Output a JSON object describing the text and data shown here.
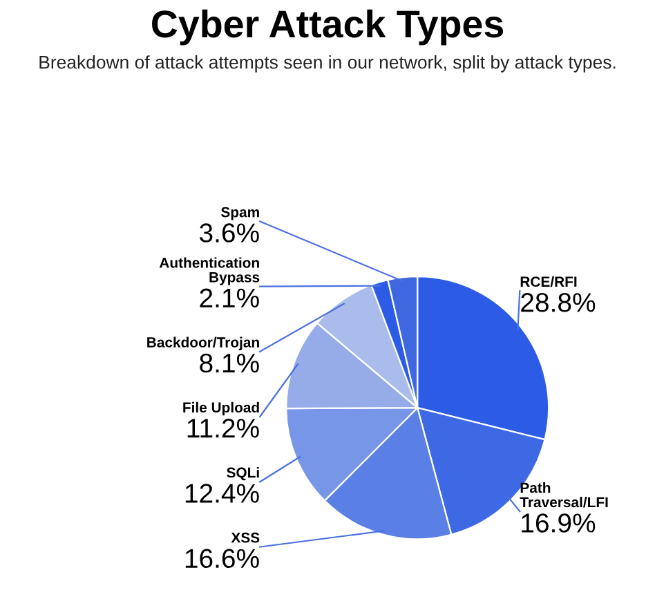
{
  "chart_data": {
    "type": "pie",
    "title": "Cyber Attack Types",
    "subtitle": "Breakdown of attack attempts seen in our network, split by attack types.",
    "categories": [
      "RCE/RFI",
      "Path\nTraversal/LFI",
      "XSS",
      "SQLi",
      "File Upload",
      "Backdoor/Trojan",
      "Authentication\nBypass",
      "Spam"
    ],
    "values": [
      28.8,
      16.9,
      16.6,
      12.4,
      11.2,
      8.1,
      2.1,
      3.6
    ],
    "colors": [
      "#2c5ce6",
      "#3e69e4",
      "#5a80e6",
      "#7896e8",
      "#95ace9",
      "#a9bcec",
      "#2c5ce6",
      "#3f68e0"
    ],
    "value_labels": [
      "28.8%",
      "16.9%",
      "16.6%",
      "12.4%",
      "11.2%",
      "8.1%",
      "2.1%",
      "3.6%"
    ]
  }
}
